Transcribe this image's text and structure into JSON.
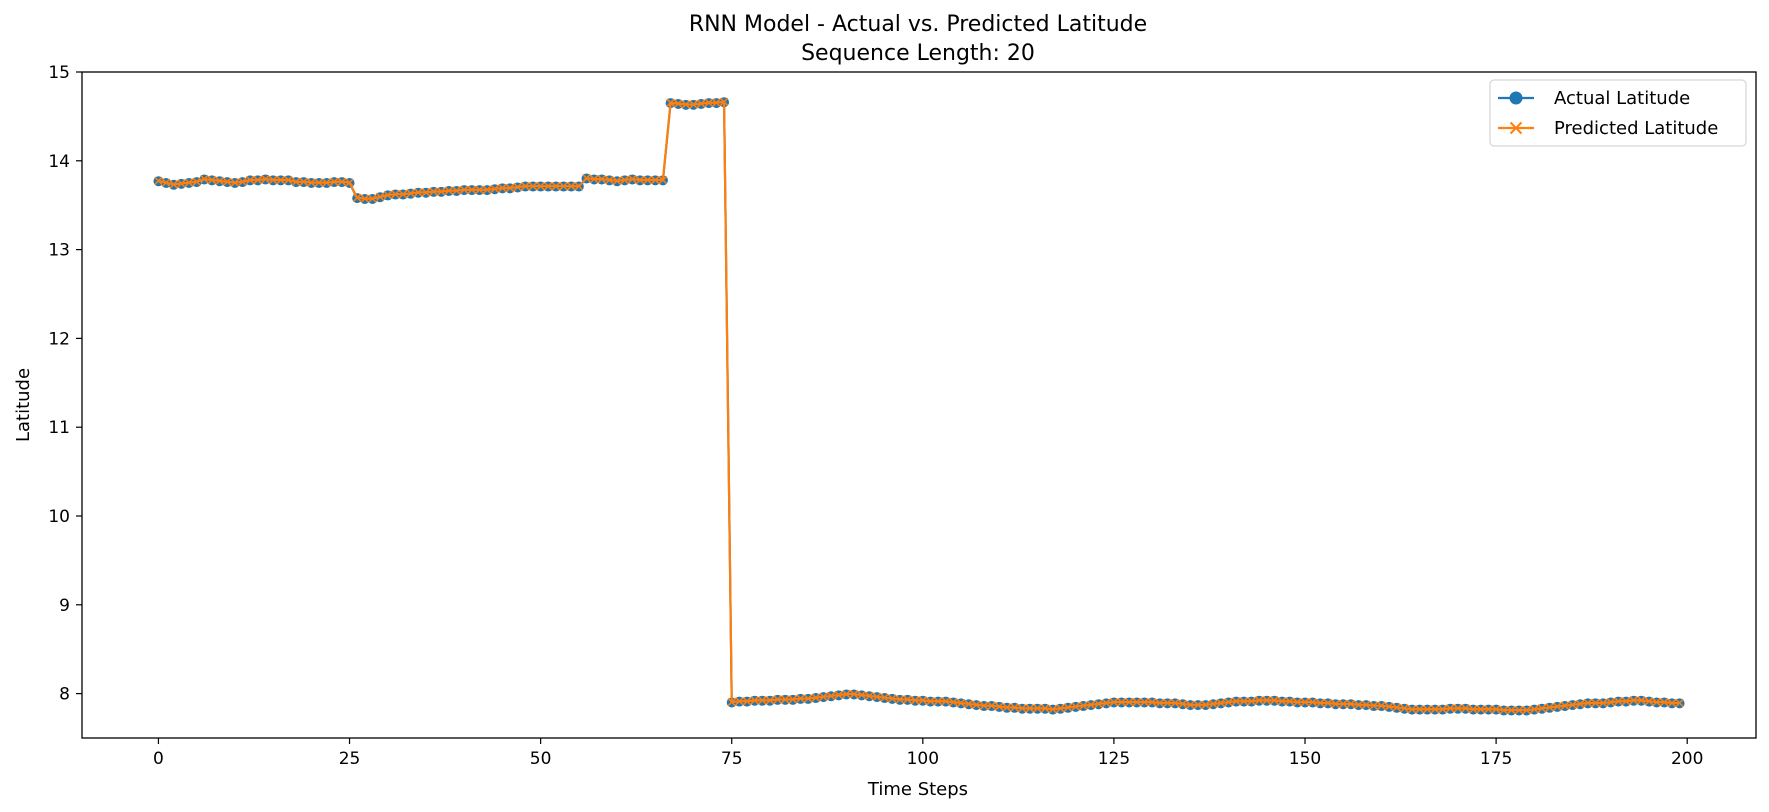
{
  "chart_data": {
    "type": "line",
    "title": "RNN Model - Actual vs. Predicted Latitude",
    "subtitle": "Sequence Length: 20",
    "xlabel": "Time Steps",
    "ylabel": "Latitude",
    "xlim": [
      -10,
      209
    ],
    "ylim": [
      7.5,
      15
    ],
    "xticks": [
      0,
      25,
      50,
      75,
      100,
      125,
      150,
      175,
      200
    ],
    "yticks": [
      8,
      9,
      10,
      11,
      12,
      13,
      14,
      15
    ],
    "grid": false,
    "legend": "top-right",
    "segments": [
      {
        "start": 0,
        "end": 25,
        "values": [
          13.77,
          13.75,
          13.73,
          13.74,
          13.75,
          13.76,
          13.79,
          13.78,
          13.77,
          13.76,
          13.75,
          13.76,
          13.78,
          13.78,
          13.79,
          13.78,
          13.78,
          13.78,
          13.76,
          13.76,
          13.75,
          13.75,
          13.75,
          13.76,
          13.76,
          13.75
        ]
      },
      {
        "start": 26,
        "end": 55,
        "values": [
          13.58,
          13.57,
          13.57,
          13.59,
          13.61,
          13.62,
          13.62,
          13.63,
          13.64,
          13.64,
          13.65,
          13.65,
          13.66,
          13.66,
          13.67,
          13.67,
          13.67,
          13.67,
          13.68,
          13.69,
          13.69,
          13.7,
          13.71,
          13.71,
          13.71,
          13.71,
          13.71,
          13.71,
          13.71,
          13.71
        ]
      },
      {
        "start": 56,
        "end": 66,
        "values": [
          13.8,
          13.79,
          13.79,
          13.78,
          13.77,
          13.78,
          13.79,
          13.78,
          13.78,
          13.78,
          13.78
        ]
      },
      {
        "start": 67,
        "end": 74,
        "values": [
          14.65,
          14.64,
          14.63,
          14.63,
          14.64,
          14.65,
          14.65,
          14.66
        ]
      },
      {
        "start": 75,
        "end": 199,
        "values": [
          7.9,
          7.91,
          7.91,
          7.92,
          7.92,
          7.92,
          7.93,
          7.93,
          7.93,
          7.94,
          7.94,
          7.95,
          7.96,
          7.97,
          7.98,
          7.99,
          7.99,
          7.98,
          7.97,
          7.96,
          7.95,
          7.94,
          7.93,
          7.93,
          7.92,
          7.92,
          7.91,
          7.91,
          7.91,
          7.9,
          7.89,
          7.88,
          7.87,
          7.86,
          7.86,
          7.85,
          7.84,
          7.84,
          7.83,
          7.83,
          7.83,
          7.83,
          7.82,
          7.83,
          7.84,
          7.85,
          7.86,
          7.87,
          7.88,
          7.89,
          7.9,
          7.9,
          7.9,
          7.9,
          7.9,
          7.9,
          7.89,
          7.89,
          7.89,
          7.88,
          7.87,
          7.87,
          7.87,
          7.88,
          7.89,
          7.9,
          7.91,
          7.91,
          7.91,
          7.92,
          7.92,
          7.92,
          7.91,
          7.91,
          7.9,
          7.9,
          7.9,
          7.89,
          7.89,
          7.88,
          7.88,
          7.88,
          7.87,
          7.87,
          7.86,
          7.86,
          7.85,
          7.84,
          7.83,
          7.82,
          7.82,
          7.82,
          7.82,
          7.82,
          7.83,
          7.83,
          7.83,
          7.82,
          7.82,
          7.82,
          7.82,
          7.81,
          7.81,
          7.81,
          7.81,
          7.82,
          7.83,
          7.84,
          7.85,
          7.86,
          7.87,
          7.88,
          7.89,
          7.89,
          7.89,
          7.9,
          7.91,
          7.91,
          7.92,
          7.92,
          7.91,
          7.9,
          7.9,
          7.89,
          7.89
        ]
      }
    ],
    "series": [
      {
        "name": "Actual Latitude",
        "color": "#1f77b4",
        "marker": "circle",
        "offset": 0
      },
      {
        "name": "Predicted Latitude",
        "color": "#ff7f0e",
        "marker": "x",
        "offset": 0.004
      }
    ]
  }
}
